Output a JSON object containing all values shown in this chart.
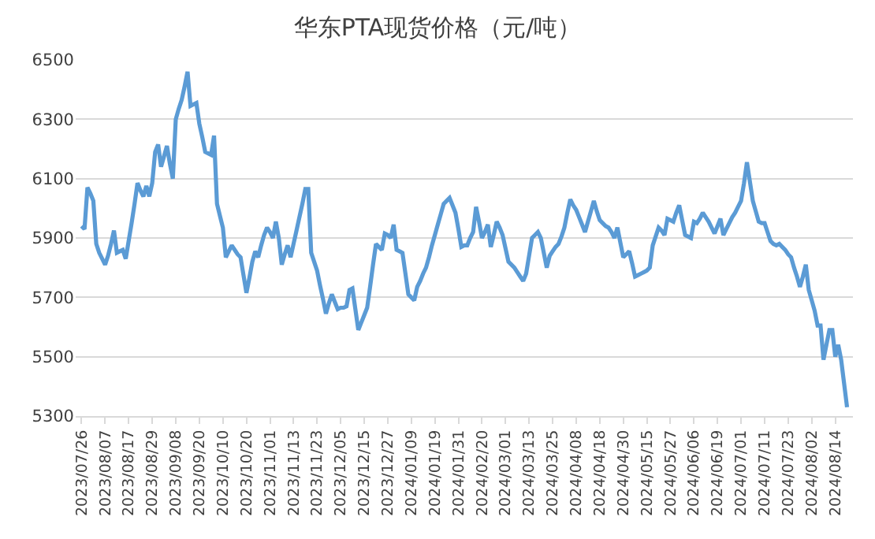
{
  "chart_data": {
    "type": "line",
    "title": "华东PTA现货价格（元/吨）",
    "categories": [
      "2023/07/26",
      null,
      null,
      null,
      null,
      null,
      null,
      null,
      "2023/08/07",
      null,
      null,
      null,
      null,
      null,
      null,
      null,
      "2023/08/17",
      null,
      null,
      null,
      null,
      null,
      null,
      null,
      "2023/08/29",
      null,
      null,
      null,
      null,
      null,
      null,
      null,
      "2023/09/08",
      null,
      null,
      null,
      null,
      null,
      null,
      null,
      "2023/09/20",
      null,
      null,
      null,
      null,
      null,
      null,
      null,
      "2023/10/10",
      null,
      null,
      null,
      null,
      null,
      null,
      null,
      "2023/10/20",
      null,
      null,
      null,
      null,
      null,
      null,
      null,
      "2023/11/01",
      null,
      null,
      null,
      null,
      null,
      null,
      null,
      "2023/11/13",
      null,
      null,
      null,
      null,
      null,
      null,
      null,
      "2023/11/23",
      null,
      null,
      null,
      null,
      null,
      null,
      null,
      "2023/12/05",
      null,
      null,
      null,
      null,
      null,
      null,
      null,
      "2023/12/15",
      null,
      null,
      null,
      null,
      null,
      null,
      null,
      "2023/12/27",
      null,
      null,
      null,
      null,
      null,
      null,
      null,
      "2024/01/09",
      null,
      null,
      null,
      null,
      null,
      null,
      null,
      "2024/01/19",
      null,
      null,
      null,
      null,
      null,
      null,
      null,
      "2024/01/31",
      null,
      null,
      null,
      null,
      null,
      null,
      null,
      "2024/02/20",
      null,
      null,
      null,
      null,
      null,
      null,
      null,
      "2024/03/01",
      null,
      null,
      null,
      null,
      null,
      null,
      null,
      "2024/03/13",
      null,
      null,
      null,
      null,
      null,
      null,
      null,
      "2024/03/25",
      null,
      null,
      null,
      null,
      null,
      null,
      null,
      "2024/04/08",
      null,
      null,
      null,
      null,
      null,
      null,
      null,
      "2024/04/18",
      null,
      null,
      null,
      null,
      null,
      null,
      null,
      "2024/04/30",
      null,
      null,
      null,
      null,
      null,
      null,
      null,
      "2024/05/15",
      null,
      null,
      null,
      null,
      null,
      null,
      null,
      "2024/05/27",
      null,
      null,
      null,
      null,
      null,
      null,
      null,
      "2024/06/06",
      null,
      null,
      null,
      null,
      null,
      null,
      null,
      "2024/06/19",
      null,
      null,
      null,
      null,
      null,
      null,
      null,
      "2024/07/01",
      null,
      null,
      null,
      null,
      null,
      null,
      null,
      "2024/07/11",
      null,
      null,
      null,
      null,
      null,
      null,
      null,
      "2024/07/23",
      null,
      null,
      null,
      null,
      null,
      null,
      null,
      "2024/08/02",
      null,
      null,
      null,
      null,
      null,
      null,
      null,
      "2024/08/14",
      null,
      null,
      null,
      null
    ],
    "values": [
      5940,
      5930,
      6070,
      6050,
      6025,
      5880,
      5850,
      5830,
      5810,
      5840,
      5880,
      5925,
      5850,
      5855,
      5860,
      5830,
      5890,
      5950,
      6015,
      6085,
      6060,
      6040,
      6075,
      6040,
      6085,
      6190,
      6215,
      6140,
      6175,
      6210,
      6150,
      6100,
      6300,
      6335,
      6365,
      6410,
      6460,
      6345,
      6350,
      6355,
      6285,
      6240,
      6190,
      6185,
      6180,
      6245,
      6015,
      5975,
      5935,
      5835,
      5855,
      5875,
      5860,
      5845,
      5835,
      5775,
      5715,
      5765,
      5820,
      5855,
      5835,
      5875,
      5910,
      5935,
      5920,
      5900,
      5955,
      5900,
      5810,
      5845,
      5875,
      5835,
      5880,
      5925,
      5970,
      6015,
      6065,
      6065,
      5850,
      5820,
      5790,
      5740,
      5695,
      5645,
      5680,
      5710,
      5685,
      5660,
      5665,
      5665,
      5670,
      5725,
      5730,
      5660,
      5590,
      5615,
      5640,
      5665,
      5735,
      5810,
      5880,
      5870,
      5860,
      5915,
      5910,
      5900,
      5945,
      5860,
      5855,
      5850,
      5780,
      5710,
      5700,
      5690,
      5735,
      5755,
      5780,
      5800,
      5835,
      5875,
      5910,
      5945,
      5980,
      6015,
      6025,
      6035,
      6010,
      5985,
      5930,
      5870,
      5875,
      5875,
      5900,
      5920,
      6005,
      5955,
      5900,
      5920,
      5945,
      5870,
      5910,
      5955,
      5935,
      5910,
      5865,
      5820,
      5810,
      5800,
      5785,
      5770,
      5755,
      5780,
      5840,
      5900,
      5910,
      5920,
      5900,
      5850,
      5800,
      5840,
      5855,
      5870,
      5880,
      5905,
      5935,
      5985,
      6030,
      6010,
      5995,
      5970,
      5945,
      5920,
      5955,
      5990,
      6025,
      5990,
      5960,
      5950,
      5940,
      5935,
      5920,
      5900,
      5935,
      5885,
      5835,
      5845,
      5855,
      5815,
      5770,
      5775,
      5780,
      5785,
      5790,
      5800,
      5875,
      5905,
      5935,
      5925,
      5910,
      5965,
      5960,
      5955,
      5985,
      6010,
      5960,
      5910,
      5905,
      5900,
      5955,
      5950,
      5965,
      5985,
      5970,
      5955,
      5935,
      5915,
      5940,
      5965,
      5910,
      5930,
      5950,
      5970,
      5985,
      6005,
      6025,
      6085,
      6155,
      6090,
      6025,
      5990,
      5955,
      5950,
      5950,
      5920,
      5890,
      5880,
      5875,
      5880,
      5870,
      5860,
      5845,
      5835,
      5800,
      5770,
      5735,
      5770,
      5810,
      5725,
      5690,
      5655,
      5605,
      5605,
      5490,
      5540,
      5590,
      5590,
      5500,
      5540,
      5490,
      5410,
      5330
    ],
    "color": "#5b9bd5",
    "ylim": [
      5300,
      6500
    ],
    "yticks": [
      5300,
      5500,
      5700,
      5900,
      6100,
      6300,
      6500
    ],
    "grid": "y",
    "legend": false,
    "marker": "none",
    "line_style": "solid"
  }
}
